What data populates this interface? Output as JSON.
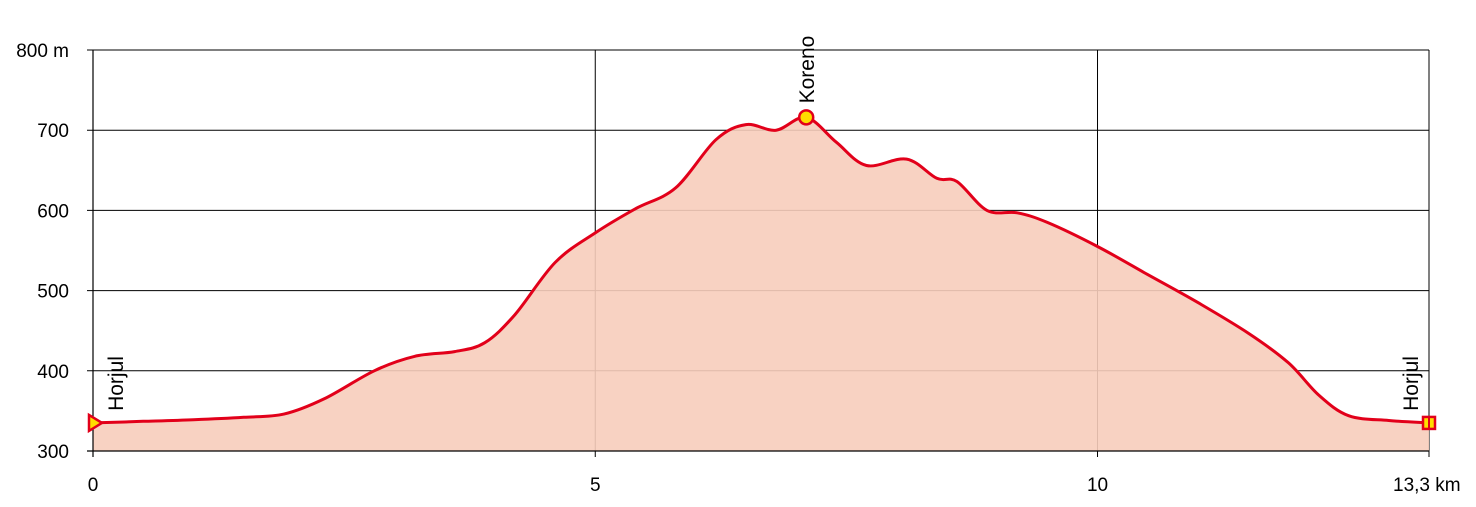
{
  "chart_data": {
    "type": "area",
    "title": "",
    "xlabel": "",
    "ylabel": "",
    "xlim": [
      0,
      13.3
    ],
    "ylim": [
      300,
      800
    ],
    "grid": true,
    "x_ticks": [
      {
        "value": 0,
        "label": "0"
      },
      {
        "value": 5,
        "label": "5"
      },
      {
        "value": 10,
        "label": "10"
      },
      {
        "value": 13.3,
        "label": "13,3 km"
      }
    ],
    "y_ticks": [
      {
        "value": 300,
        "label": "300"
      },
      {
        "value": 400,
        "label": "400"
      },
      {
        "value": 500,
        "label": "500"
      },
      {
        "value": 600,
        "label": "600"
      },
      {
        "value": 700,
        "label": "700"
      },
      {
        "value": 800,
        "label": "800 m"
      }
    ],
    "series": [
      {
        "x": [
          0,
          0.5,
          1.0,
          1.5,
          1.9,
          2.3,
          2.8,
          3.2,
          3.6,
          3.9,
          4.2,
          4.6,
          5.0,
          5.4,
          5.8,
          6.2,
          6.5,
          6.8,
          7.1,
          7.4,
          7.7,
          8.1,
          8.4,
          8.6,
          8.9,
          9.2,
          9.5,
          10.0,
          10.5,
          11.0,
          11.5,
          11.9,
          12.2,
          12.5,
          12.9,
          13.3
        ],
        "y": [
          335,
          337,
          339,
          342,
          346,
          365,
          400,
          418,
          424,
          435,
          470,
          535,
          572,
          602,
          628,
          688,
          707,
          700,
          716,
          685,
          656,
          664,
          640,
          636,
          600,
          597,
          585,
          555,
          520,
          485,
          447,
          410,
          370,
          344,
          338,
          335
        ],
        "line_color": "#e2001a",
        "fill_color": "#f7cdbb"
      }
    ],
    "waypoints": [
      {
        "label": "Horjul",
        "x": 0,
        "y": 335,
        "marker": "triangle"
      },
      {
        "label": "Koreno",
        "x": 7.1,
        "y": 716,
        "marker": "circle"
      },
      {
        "label": "Horjul",
        "x": 13.3,
        "y": 335,
        "marker": "square"
      }
    ],
    "colors": {
      "line": "#e2001a",
      "fill": "#f7cdbb",
      "marker_fill": "#ffdd00",
      "marker_stroke": "#e2001a"
    }
  }
}
